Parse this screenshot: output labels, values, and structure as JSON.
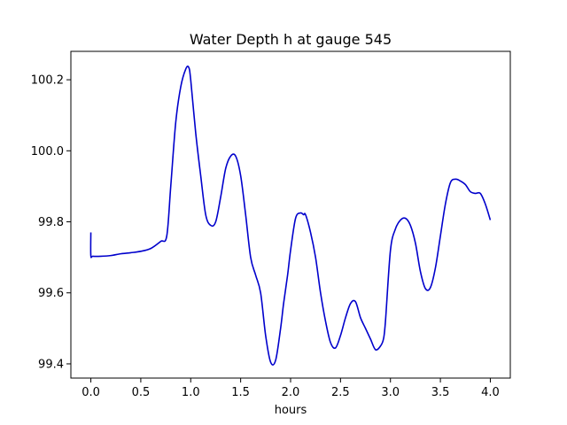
{
  "chart_data": {
    "type": "line",
    "title": "Water Depth h at gauge 545",
    "xlabel": "hours",
    "ylabel": "",
    "xlim": [
      -0.2,
      4.2
    ],
    "ylim": [
      99.36,
      100.28
    ],
    "grid": false,
    "x_ticks": [
      0.0,
      0.5,
      1.0,
      1.5,
      2.0,
      2.5,
      3.0,
      3.5,
      4.0
    ],
    "x_tick_labels": [
      "0.0",
      "0.5",
      "1.0",
      "1.5",
      "2.0",
      "2.5",
      "3.0",
      "3.5",
      "4.0"
    ],
    "y_ticks": [
      99.4,
      99.6,
      99.8,
      100.0,
      100.2
    ],
    "y_tick_labels": [
      "99.4",
      "99.6",
      "99.8",
      "100.0",
      "100.2"
    ],
    "series": [
      {
        "color": "#0000cc",
        "x": [
          0.0,
          0.0,
          0.02,
          0.1,
          0.2,
          0.3,
          0.4,
          0.5,
          0.6,
          0.7,
          0.76,
          0.8,
          0.85,
          0.9,
          0.95,
          0.98,
          1.0,
          1.05,
          1.1,
          1.15,
          1.2,
          1.25,
          1.3,
          1.35,
          1.4,
          1.45,
          1.5,
          1.55,
          1.6,
          1.65,
          1.7,
          1.75,
          1.8,
          1.85,
          1.9,
          1.93,
          1.97,
          2.0,
          2.05,
          2.1,
          2.13,
          2.15,
          2.2,
          2.25,
          2.3,
          2.35,
          2.4,
          2.45,
          2.5,
          2.55,
          2.6,
          2.65,
          2.7,
          2.75,
          2.8,
          2.85,
          2.9,
          2.93,
          2.95,
          3.0,
          3.05,
          3.1,
          3.15,
          3.2,
          3.25,
          3.3,
          3.35,
          3.4,
          3.45,
          3.5,
          3.55,
          3.6,
          3.65,
          3.7,
          3.75,
          3.8,
          3.85,
          3.9,
          3.95,
          4.0
        ],
        "y": [
          99.77,
          99.705,
          99.703,
          99.703,
          99.705,
          99.71,
          99.713,
          99.717,
          99.725,
          99.745,
          99.76,
          99.9,
          100.08,
          100.18,
          100.23,
          100.235,
          100.2,
          100.05,
          99.93,
          99.82,
          99.79,
          99.8,
          99.87,
          99.95,
          99.985,
          99.985,
          99.93,
          99.82,
          99.7,
          99.65,
          99.6,
          99.48,
          99.405,
          99.41,
          99.5,
          99.57,
          99.65,
          99.72,
          99.81,
          99.825,
          99.82,
          99.82,
          99.77,
          99.7,
          99.6,
          99.52,
          99.46,
          99.445,
          99.48,
          99.53,
          99.57,
          99.575,
          99.53,
          99.5,
          99.47,
          99.44,
          99.45,
          99.47,
          99.52,
          99.72,
          99.78,
          99.805,
          99.81,
          99.79,
          99.74,
          99.66,
          99.612,
          99.615,
          99.67,
          99.76,
          99.85,
          99.91,
          99.92,
          99.915,
          99.905,
          99.885,
          99.88,
          99.88,
          99.85,
          99.805
        ]
      }
    ]
  }
}
